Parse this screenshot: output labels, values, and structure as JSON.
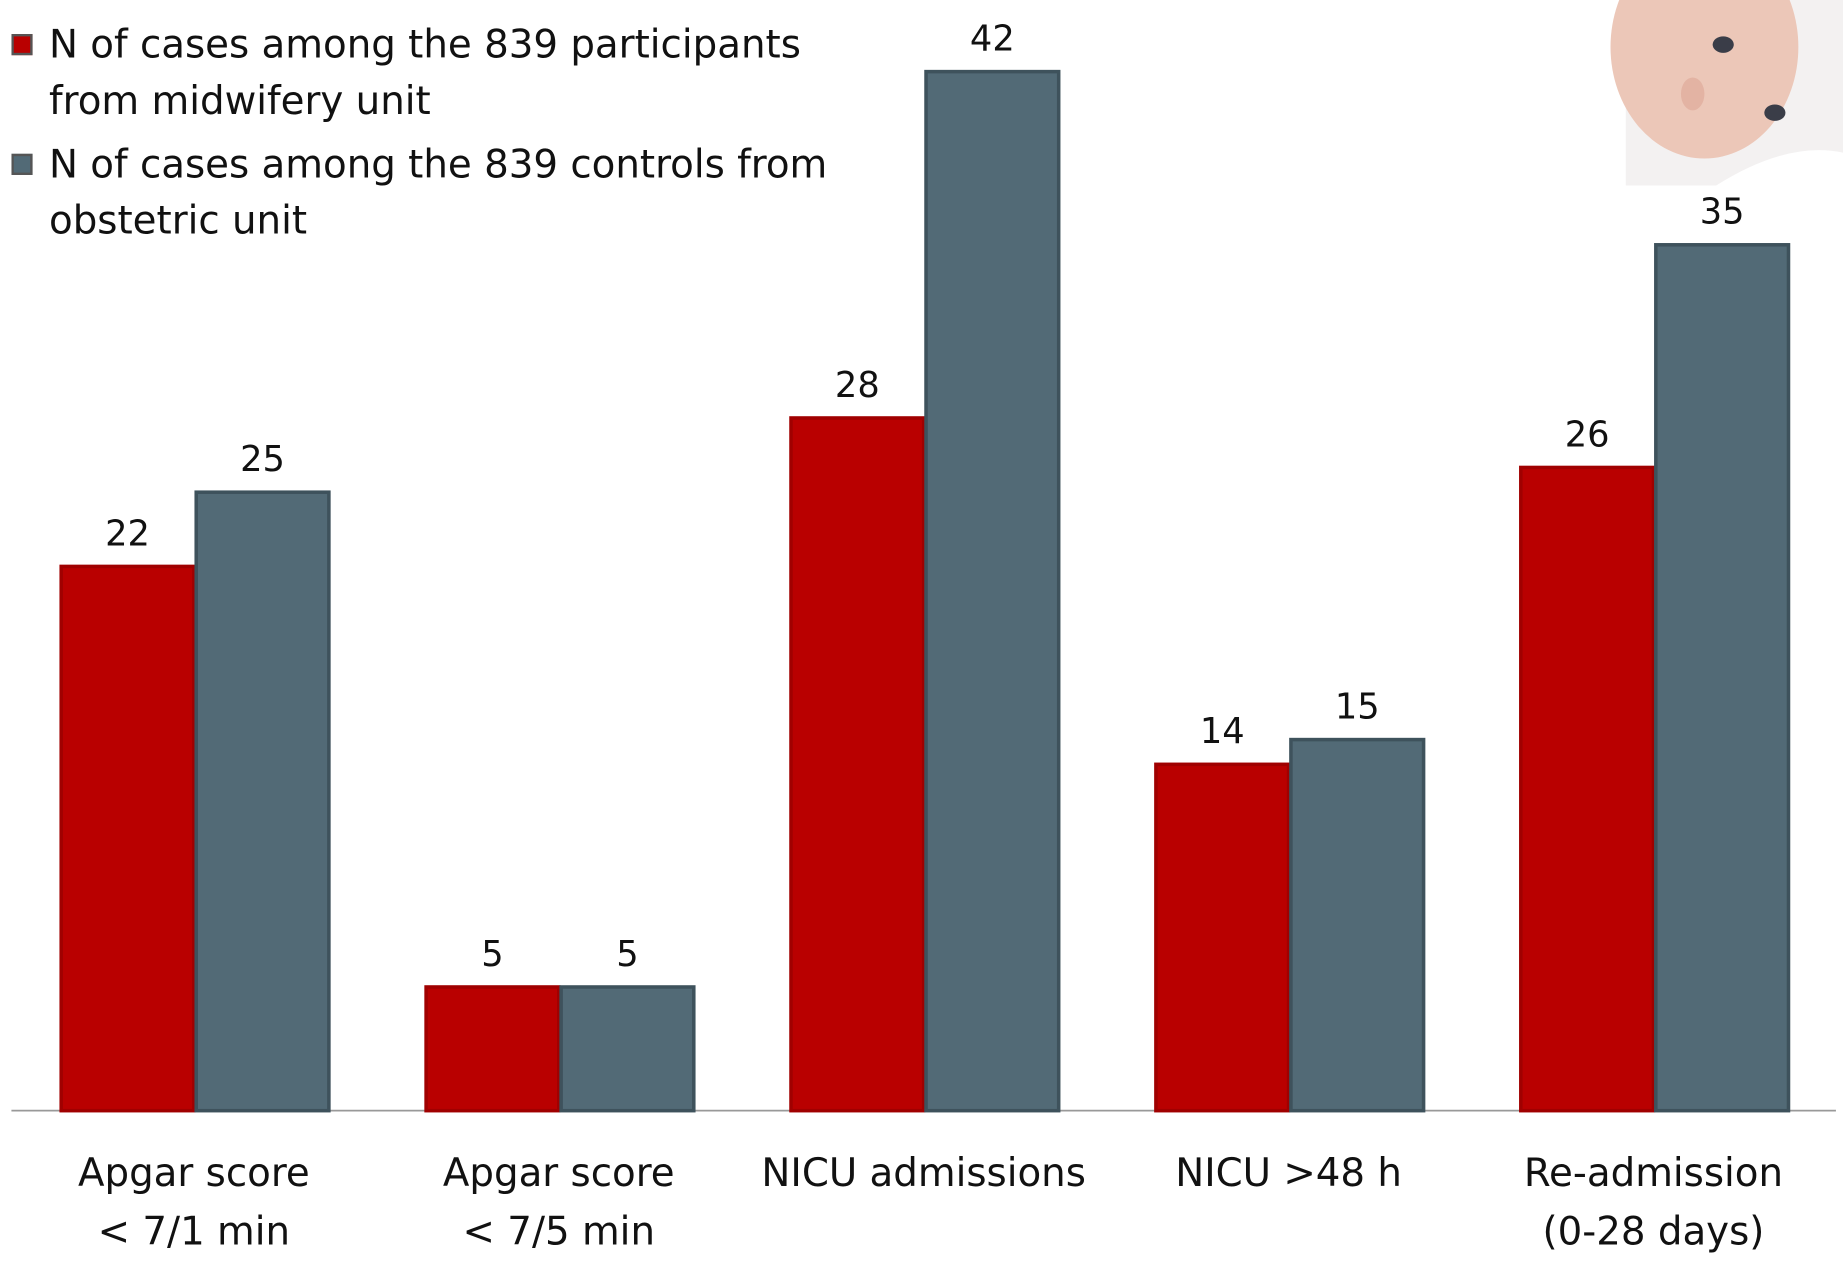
{
  "chart_data": {
    "type": "bar",
    "categories": [
      "Apgar score\n< 7/1 min",
      "Apgar score\n< 7/5 min",
      "NICU admissions",
      "NICU >48 h",
      "Re-admission\n(0-28 days)"
    ],
    "series": [
      {
        "name": "N of cases among the 839 participants from midwifery unit",
        "color": "#b90000",
        "values": [
          22,
          5,
          28,
          14,
          26
        ]
      },
      {
        "name": "N of cases among the 839 controls from obstetric unit",
        "color": "#526a76",
        "values": [
          25,
          5,
          42,
          15,
          35
        ]
      }
    ],
    "ylim": [
      0,
      42
    ],
    "legend": "top-left"
  }
}
